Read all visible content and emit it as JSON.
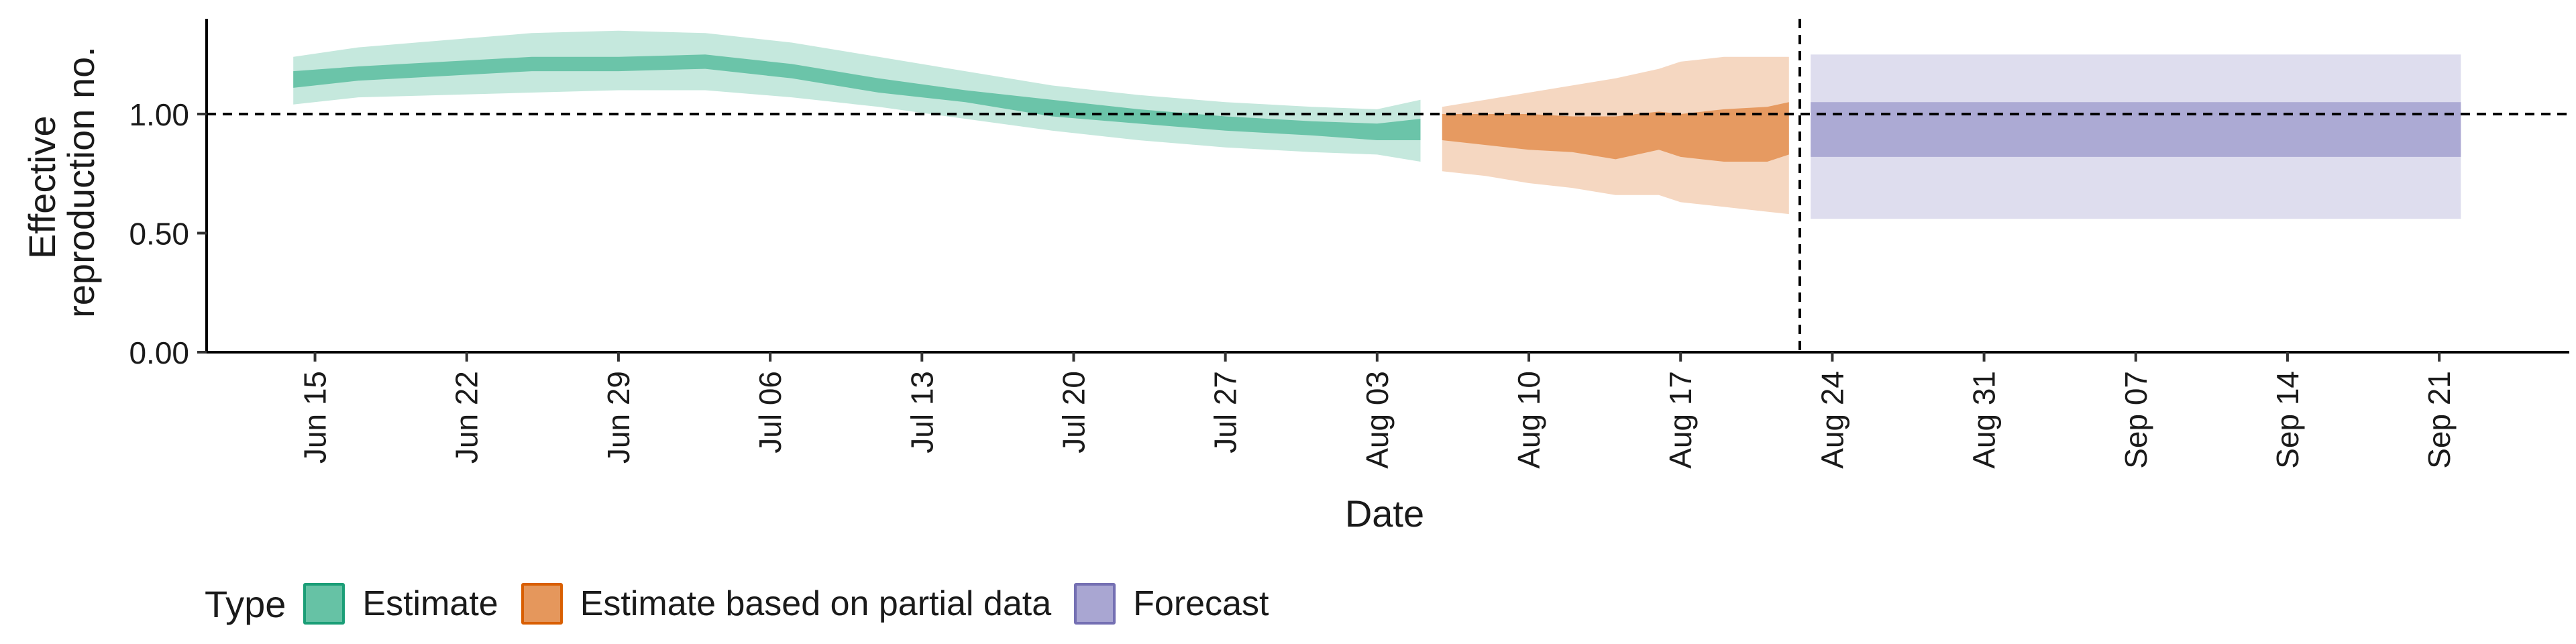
{
  "chart_data": {
    "type": "area",
    "xlabel": "Date",
    "ylabel": [
      "Effective",
      "reproduction no."
    ],
    "ylim": [
      0,
      1.4
    ],
    "yticks": [
      0,
      0.5,
      1.0
    ],
    "ytick_labels": [
      "0.00",
      "0.50",
      "1.00"
    ],
    "xlim": [
      "2020-06-10",
      "2020-09-27"
    ],
    "x_ticks": [
      "2020-06-15",
      "2020-06-22",
      "2020-06-29",
      "2020-07-06",
      "2020-07-13",
      "2020-07-20",
      "2020-07-27",
      "2020-08-03",
      "2020-08-10",
      "2020-08-17",
      "2020-08-24",
      "2020-08-31",
      "2020-09-07",
      "2020-09-14",
      "2020-09-21"
    ],
    "x_tick_labels": [
      "Jun 15",
      "Jun 22",
      "Jun 29",
      "Jul 06",
      "Jul 13",
      "Jul 20",
      "Jul 27",
      "Aug 03",
      "Aug 10",
      "Aug 17",
      "Aug 24",
      "Aug 31",
      "Sep 07",
      "Sep 14",
      "Sep 21"
    ],
    "reference_line_y": 1.0,
    "forecast_start_date": "2020-08-22",
    "legend_title": "Type",
    "series": [
      {
        "name": "Estimate",
        "color": "#1b9e77",
        "fill": "#66c2a5",
        "dates": [
          "2020-06-14",
          "2020-06-17",
          "2020-06-21",
          "2020-06-25",
          "2020-06-29",
          "2020-07-03",
          "2020-07-07",
          "2020-07-11",
          "2020-07-15",
          "2020-07-19",
          "2020-07-23",
          "2020-07-27",
          "2020-07-31",
          "2020-08-03",
          "2020-08-05"
        ],
        "median": [
          1.15,
          1.17,
          1.19,
          1.21,
          1.21,
          1.22,
          1.18,
          1.12,
          1.07,
          1.03,
          0.99,
          0.96,
          0.94,
          0.93,
          0.95
        ],
        "lower_50": [
          1.11,
          1.14,
          1.16,
          1.18,
          1.18,
          1.19,
          1.15,
          1.09,
          1.05,
          0.99,
          0.96,
          0.93,
          0.91,
          0.89,
          0.89
        ],
        "upper_50": [
          1.18,
          1.2,
          1.22,
          1.24,
          1.24,
          1.25,
          1.21,
          1.15,
          1.1,
          1.06,
          1.02,
          0.99,
          0.97,
          0.96,
          0.98
        ],
        "lower_90": [
          1.04,
          1.07,
          1.08,
          1.09,
          1.1,
          1.1,
          1.07,
          1.03,
          0.98,
          0.93,
          0.89,
          0.86,
          0.84,
          0.83,
          0.8
        ],
        "upper_90": [
          1.24,
          1.28,
          1.31,
          1.34,
          1.35,
          1.34,
          1.3,
          1.24,
          1.18,
          1.12,
          1.08,
          1.05,
          1.03,
          1.02,
          1.06
        ]
      },
      {
        "name": "Estimate based on partial data",
        "color": "#d95f02",
        "fill": "#e5975c",
        "dates": [
          "2020-08-06",
          "2020-08-08",
          "2020-08-10",
          "2020-08-12",
          "2020-08-14",
          "2020-08-16",
          "2020-08-17",
          "2020-08-19",
          "2020-08-21",
          "2020-08-22"
        ],
        "median": [
          0.96,
          0.95,
          0.93,
          0.93,
          0.91,
          0.93,
          0.91,
          0.93,
          0.93,
          0.95
        ],
        "lower_50": [
          0.89,
          0.87,
          0.85,
          0.84,
          0.81,
          0.85,
          0.82,
          0.8,
          0.8,
          0.83
        ],
        "upper_50": [
          1.0,
          1.0,
          1.0,
          0.99,
          0.99,
          1.01,
          1.0,
          1.02,
          1.03,
          1.05
        ],
        "lower_90": [
          0.76,
          0.74,
          0.71,
          0.69,
          0.66,
          0.66,
          0.63,
          0.61,
          0.59,
          0.58
        ],
        "upper_90": [
          1.03,
          1.06,
          1.09,
          1.12,
          1.15,
          1.19,
          1.22,
          1.24,
          1.24,
          1.24
        ]
      },
      {
        "name": "Forecast",
        "color": "#7570b3",
        "fill": "#a9a6d2",
        "dates": [
          "2020-08-23",
          "2020-09-22"
        ],
        "median": [
          0.95,
          0.95
        ],
        "lower_50": [
          0.82,
          0.82
        ],
        "upper_50": [
          1.05,
          1.05
        ],
        "lower_90": [
          0.56,
          0.56
        ],
        "upper_90": [
          1.25,
          1.25
        ]
      }
    ]
  }
}
